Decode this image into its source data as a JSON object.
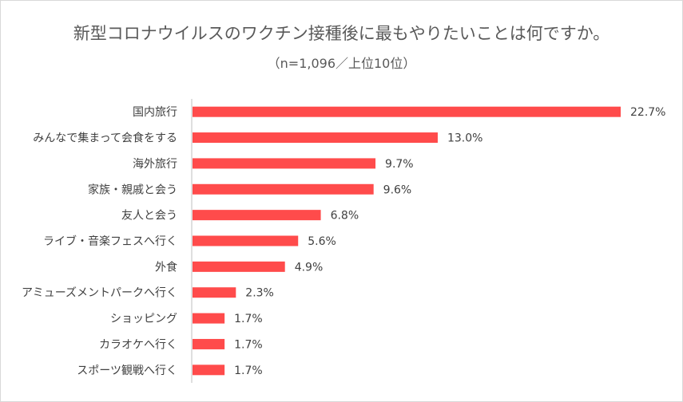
{
  "chart_data": {
    "type": "bar",
    "orientation": "horizontal",
    "title": "新型コロナウイルスのワクチン接種後に最もやりたいことは何ですか。",
    "subtitle": "（n=1,096／上位10位）",
    "categories": [
      "国内旅行",
      "みんなで集まって会食をする",
      "海外旅行",
      "家族・親戚と会う",
      "友人と会う",
      "ライブ・音楽フェスへ行く",
      "外食",
      "アミューズメントパークへ行く",
      "ショッピング",
      "カラオケへ行く",
      "スポーツ観戦へ行く"
    ],
    "values": [
      22.7,
      13.0,
      9.7,
      9.6,
      6.8,
      5.6,
      4.9,
      2.3,
      1.7,
      1.7,
      1.7
    ],
    "value_labels": [
      "22.7%",
      "13.0%",
      "9.7%",
      "9.6%",
      "6.8%",
      "5.6%",
      "4.9%",
      "2.3%",
      "1.7%",
      "1.7%",
      "1.7%"
    ],
    "xlim": [
      0,
      22.7
    ],
    "bar_color": "#ff4b4b",
    "grid": false,
    "legend": "none"
  }
}
